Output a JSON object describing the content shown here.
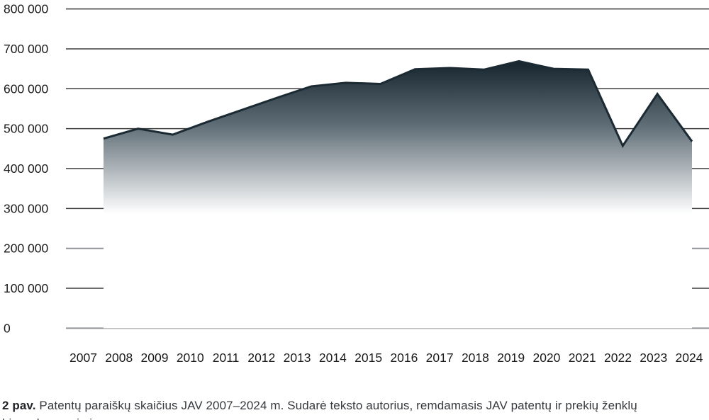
{
  "chart_data": {
    "type": "area",
    "title": "",
    "xlabel": "",
    "ylabel": "",
    "categories": [
      "2007",
      "2008",
      "2009",
      "2010",
      "2011",
      "2012",
      "2013",
      "2014",
      "2015",
      "2016",
      "2017",
      "2018",
      "2019",
      "2020",
      "2021",
      "2022",
      "2023",
      "2024"
    ],
    "values": [
      475000,
      500000,
      485000,
      517000,
      547000,
      577000,
      606000,
      615000,
      612000,
      649000,
      652000,
      648000,
      669000,
      650000,
      648000,
      457000,
      587000,
      468000
    ],
    "ylim": [
      0,
      800000
    ],
    "y_tick_step": 100000,
    "y_ticks": [
      {
        "value": 800000,
        "label": "800 000"
      },
      {
        "value": 700000,
        "label": "700 000"
      },
      {
        "value": 600000,
        "label": "600 000"
      },
      {
        "value": 500000,
        "label": "500 000"
      },
      {
        "value": 400000,
        "label": "400 000"
      },
      {
        "value": 300000,
        "label": "300 000"
      },
      {
        "value": 200000,
        "label": "200 000"
      },
      {
        "value": 100000,
        "label": "100 000"
      },
      {
        "value": 0,
        "label": "0"
      }
    ],
    "grid": true,
    "gray_gridline_values": [
      200000,
      0
    ],
    "legend": "none"
  },
  "caption": {
    "prefix": "2 pav.",
    "line1": "Patentų paraiškų skaičius JAV 2007–2024 m. Sudarė teksto autorius, remdamasis JAV patentų ir prekių ženklų",
    "line2": "biuro duomenimis"
  },
  "colors": {
    "area_gradient_top": "#16242d",
    "area_gradient_mid": "#5f6d76",
    "area_gradient_bottom": "#ffffff",
    "line_stroke": "#1b2a33",
    "grid_dark": "#3c3c3c",
    "grid_gray": "#919497",
    "axis_text": "#1a1a1a",
    "background": "#ffffff"
  }
}
